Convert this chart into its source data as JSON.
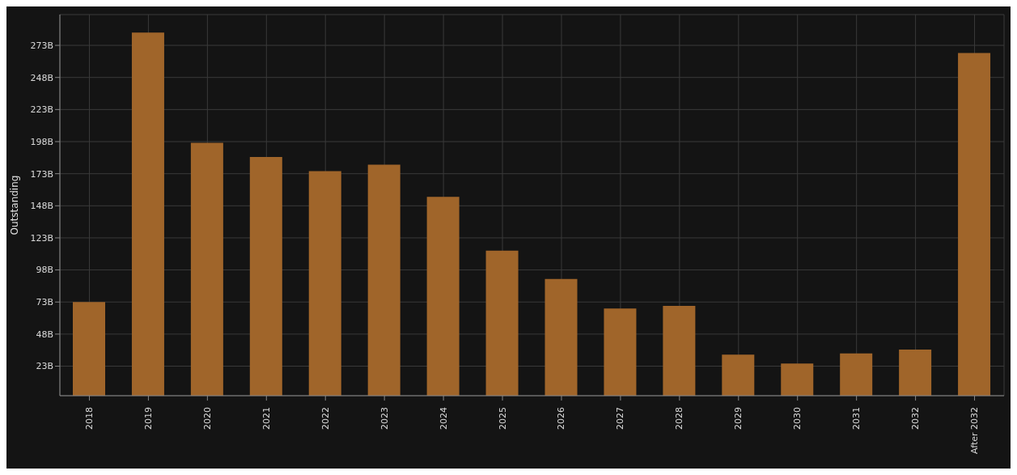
{
  "chart_data": {
    "type": "bar",
    "ylabel": "Outstanding",
    "categories": [
      "2018",
      "2019",
      "2020",
      "2021",
      "2022",
      "2023",
      "2024",
      "2025",
      "2026",
      "2027",
      "2028",
      "2029",
      "2030",
      "2031",
      "2032",
      "After 2032"
    ],
    "values": [
      73,
      283,
      197,
      186,
      175,
      180,
      155,
      113,
      91,
      68,
      70,
      32,
      25,
      33,
      36,
      267
    ],
    "color": "#a0652a",
    "ylim": [
      0,
      297
    ],
    "yticks": [
      {
        "value": 23,
        "label": "23B"
      },
      {
        "value": 48,
        "label": "48B"
      },
      {
        "value": 73,
        "label": "73B"
      },
      {
        "value": 98,
        "label": "98B"
      },
      {
        "value": 123,
        "label": "123B"
      },
      {
        "value": 148,
        "label": "148B"
      },
      {
        "value": 173,
        "label": "173B"
      },
      {
        "value": 198,
        "label": "198B"
      },
      {
        "value": 223,
        "label": "223B"
      },
      {
        "value": 248,
        "label": "248B"
      },
      {
        "value": 273,
        "label": "273B"
      }
    ],
    "grid": true
  }
}
